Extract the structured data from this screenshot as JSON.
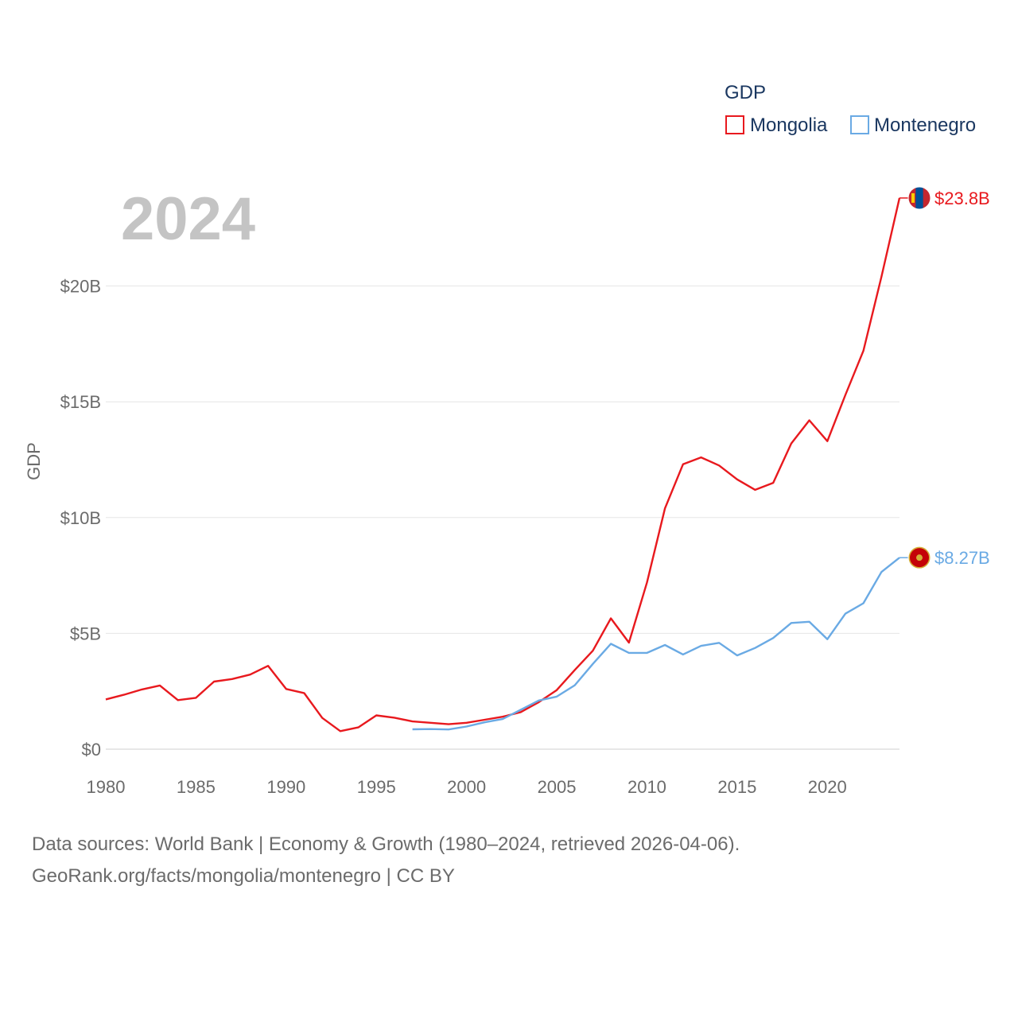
{
  "chart_data": {
    "type": "line",
    "year_label": "2024",
    "legend": {
      "title": "GDP",
      "entries": [
        "Mongolia",
        "Montenegro"
      ]
    },
    "ylabel": "GDP",
    "ylim": [
      0,
      25
    ],
    "y_ticks": [
      {
        "value": 0,
        "label": "$0"
      },
      {
        "value": 5,
        "label": "$5B"
      },
      {
        "value": 10,
        "label": "$10B"
      },
      {
        "value": 15,
        "label": "$15B"
      },
      {
        "value": 20,
        "label": "$20B"
      }
    ],
    "xlim": [
      1980,
      2024
    ],
    "x_ticks": [
      {
        "value": 1980,
        "label": "1980"
      },
      {
        "value": 1985,
        "label": "1985"
      },
      {
        "value": 1990,
        "label": "1990"
      },
      {
        "value": 1995,
        "label": "1995"
      },
      {
        "value": 2000,
        "label": "2000"
      },
      {
        "value": 2005,
        "label": "2005"
      },
      {
        "value": 2010,
        "label": "2010"
      },
      {
        "value": 2015,
        "label": "2015"
      },
      {
        "value": 2020,
        "label": "2020"
      }
    ],
    "series": [
      {
        "name": "Mongolia",
        "color": "#e8191e",
        "end_label": "$23.8B",
        "flag_icon": "mongolia-flag-icon",
        "x": [
          1980,
          1981,
          1982,
          1983,
          1984,
          1985,
          1986,
          1987,
          1988,
          1989,
          1990,
          1991,
          1992,
          1993,
          1994,
          1995,
          1996,
          1997,
          1998,
          1999,
          2000,
          2001,
          2002,
          2003,
          2004,
          2005,
          2006,
          2007,
          2008,
          2009,
          2010,
          2011,
          2012,
          2013,
          2014,
          2015,
          2016,
          2017,
          2018,
          2019,
          2020,
          2021,
          2022,
          2023,
          2024
        ],
        "values": [
          2.15,
          2.35,
          2.58,
          2.75,
          2.12,
          2.22,
          2.92,
          3.03,
          3.22,
          3.6,
          2.6,
          2.42,
          1.35,
          0.78,
          0.94,
          1.46,
          1.36,
          1.2,
          1.14,
          1.08,
          1.14,
          1.27,
          1.4,
          1.6,
          2.03,
          2.55,
          3.42,
          4.25,
          5.65,
          4.6,
          7.2,
          10.4,
          12.3,
          12.6,
          12.25,
          11.65,
          11.2,
          11.5,
          13.2,
          14.2,
          13.3,
          15.3,
          17.2,
          20.4,
          23.8
        ]
      },
      {
        "name": "Montenegro",
        "color": "#6aaae4",
        "end_label": "$8.27B",
        "flag_icon": "montenegro-flag-icon",
        "x": [
          1997,
          1998,
          1999,
          2000,
          2001,
          2002,
          2003,
          2004,
          2005,
          2006,
          2007,
          2008,
          2009,
          2010,
          2011,
          2012,
          2013,
          2014,
          2015,
          2016,
          2017,
          2018,
          2019,
          2020,
          2021,
          2022,
          2023,
          2024
        ],
        "values": [
          0.86,
          0.87,
          0.85,
          0.98,
          1.16,
          1.3,
          1.7,
          2.1,
          2.27,
          2.76,
          3.68,
          4.55,
          4.16,
          4.16,
          4.5,
          4.09,
          4.46,
          4.59,
          4.05,
          4.37,
          4.8,
          5.45,
          5.5,
          4.75,
          5.85,
          6.3,
          7.65,
          8.27
        ]
      }
    ]
  },
  "footer": {
    "line1": "Data sources: World Bank | Economy & Growth (1980–2024, retrieved 2026-04-06).",
    "line2": "GeoRank.org/facts/mongolia/montenegro | CC BY"
  }
}
